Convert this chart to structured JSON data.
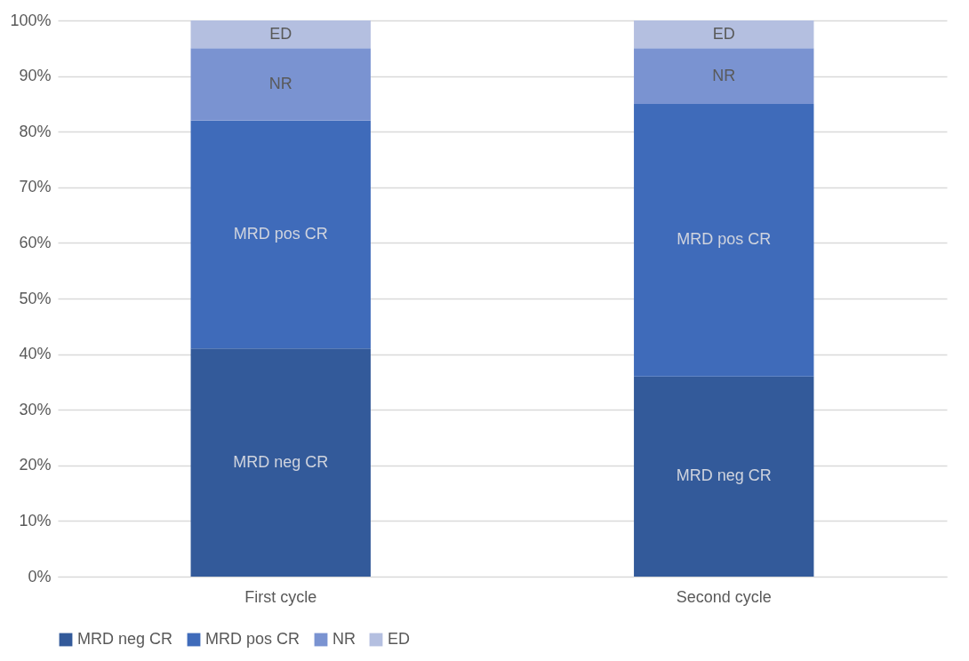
{
  "chart_data": {
    "type": "bar",
    "stacked": true,
    "categories": [
      "First cycle",
      "Second cycle"
    ],
    "series": [
      {
        "name": "MRD neg CR",
        "color": "#335a9a",
        "values": [
          41,
          36
        ]
      },
      {
        "name": "MRD pos CR",
        "color": "#3f6bba",
        "values": [
          41,
          49
        ]
      },
      {
        "name": "NR",
        "color": "#7a93d1",
        "values": [
          13,
          10
        ]
      },
      {
        "name": "ED",
        "color": "#b4bfe0",
        "values": [
          5,
          5
        ]
      }
    ],
    "ylim": [
      0,
      100
    ],
    "yticks": [
      {
        "value": 0,
        "label": "0%"
      },
      {
        "value": 10,
        "label": "10%"
      },
      {
        "value": 20,
        "label": "20%"
      },
      {
        "value": 30,
        "label": "30%"
      },
      {
        "value": 40,
        "label": "40%"
      },
      {
        "value": 50,
        "label": "50%"
      },
      {
        "value": 60,
        "label": "60%"
      },
      {
        "value": 70,
        "label": "70%"
      },
      {
        "value": 80,
        "label": "80%"
      },
      {
        "value": 90,
        "label": "90%"
      },
      {
        "value": 100,
        "label": "100%"
      }
    ],
    "grid": "y",
    "legend": "bottom"
  }
}
